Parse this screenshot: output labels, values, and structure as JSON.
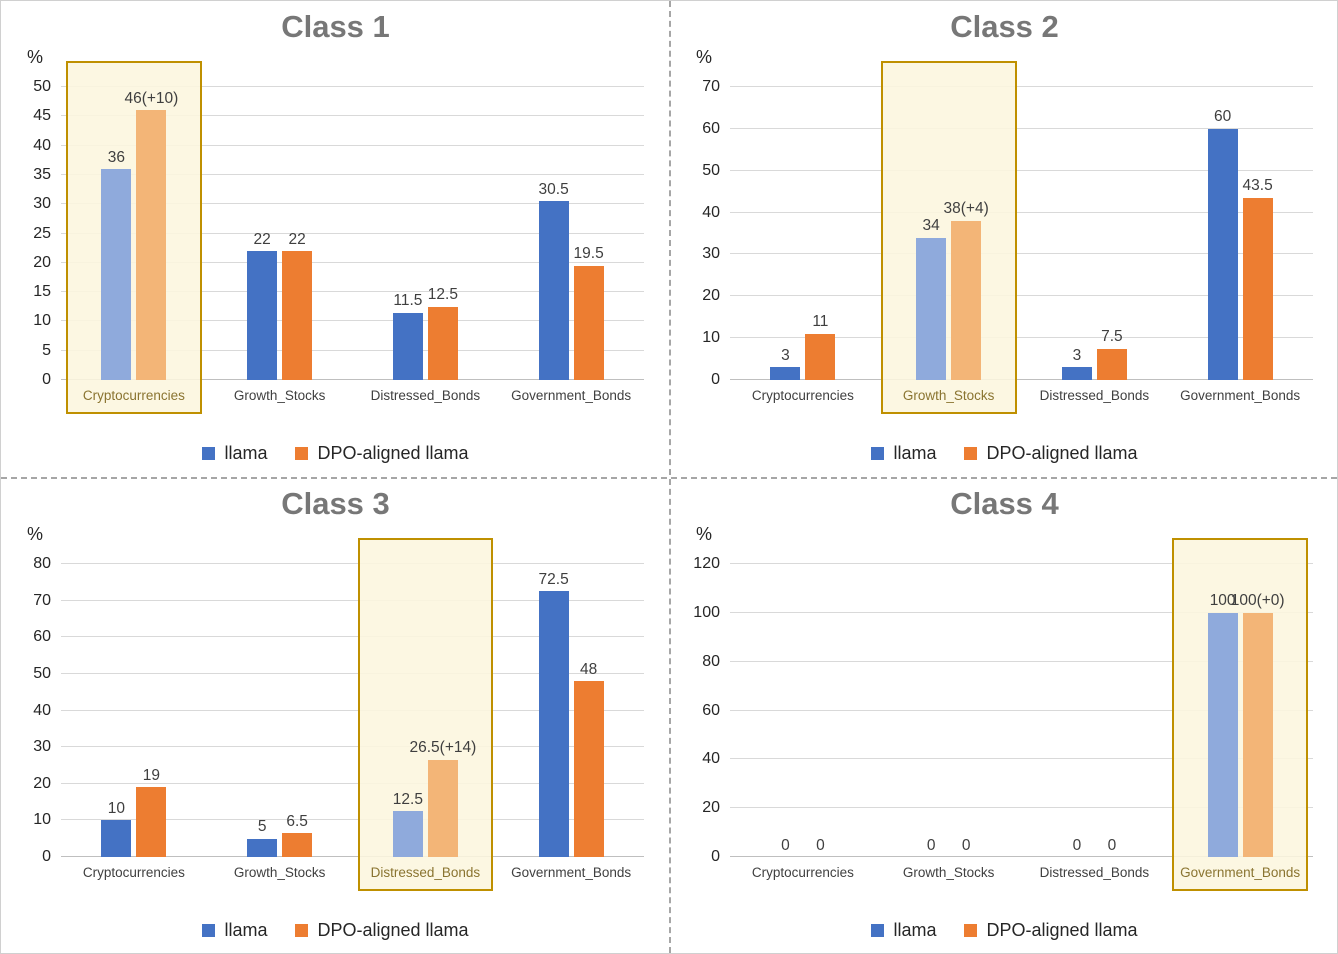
{
  "colors": {
    "blue": "#4472c4",
    "orange": "#ed7d31",
    "blue_light": "#8faadc",
    "orange_light": "#f3b577",
    "highlight_bg": "#fcf6de",
    "highlight_border": "#bf9000",
    "grid": "#d9d9d9",
    "title": "#777777"
  },
  "legend": {
    "series1": "llama",
    "series2": "DPO-aligned llama"
  },
  "chart_data": [
    {
      "type": "bar",
      "title": "Class 1",
      "ylabel": "%",
      "ylim": [
        0,
        50
      ],
      "ytick_step": 5,
      "grid": true,
      "legend_position": "bottom",
      "categories": [
        "Cryptocurrencies",
        "Growth_Stocks",
        "Distressed_Bonds",
        "Government_Bonds"
      ],
      "highlight_index": 0,
      "highlighted_category": "Cryptocurrencies",
      "series": [
        {
          "name": "llama",
          "values": [
            36,
            22,
            11.5,
            30.5
          ]
        },
        {
          "name": "DPO-aligned llama",
          "values": [
            46,
            22,
            12.5,
            19.5
          ]
        }
      ],
      "bar_labels": [
        [
          "36",
          "22",
          "11.5",
          "30.5"
        ],
        [
          "46(+10)",
          "22",
          "12.5",
          "19.5"
        ]
      ]
    },
    {
      "type": "bar",
      "title": "Class 2",
      "ylabel": "%",
      "ylim": [
        0,
        70
      ],
      "ytick_step": 10,
      "grid": true,
      "legend_position": "bottom",
      "categories": [
        "Cryptocurrencies",
        "Growth_Stocks",
        "Distressed_Bonds",
        "Government_Bonds"
      ],
      "highlight_index": 1,
      "highlighted_category": "Growth_Stocks",
      "series": [
        {
          "name": "llama",
          "values": [
            3,
            34,
            3,
            60
          ]
        },
        {
          "name": "DPO-aligned llama",
          "values": [
            11,
            38,
            7.5,
            43.5
          ]
        }
      ],
      "bar_labels": [
        [
          "3",
          "34",
          "3",
          "60"
        ],
        [
          "11",
          "38(+4)",
          "7.5",
          "43.5"
        ]
      ]
    },
    {
      "type": "bar",
      "title": "Class 3",
      "ylabel": "%",
      "ylim": [
        0,
        80
      ],
      "ytick_step": 10,
      "grid": true,
      "legend_position": "bottom",
      "categories": [
        "Cryptocurrencies",
        "Growth_Stocks",
        "Distressed_Bonds",
        "Government_Bonds"
      ],
      "highlight_index": 2,
      "highlighted_category": "Distressed_Bonds",
      "series": [
        {
          "name": "llama",
          "values": [
            10,
            5,
            12.5,
            72.5
          ]
        },
        {
          "name": "DPO-aligned llama",
          "values": [
            19,
            6.5,
            26.5,
            48
          ]
        }
      ],
      "bar_labels": [
        [
          "10",
          "5",
          "12.5",
          "72.5"
        ],
        [
          "19",
          "6.5",
          "26.5(+14)",
          "48"
        ]
      ]
    },
    {
      "type": "bar",
      "title": "Class 4",
      "ylabel": "%",
      "ylim": [
        0,
        120
      ],
      "ytick_step": 20,
      "grid": true,
      "legend_position": "bottom",
      "categories": [
        "Cryptocurrencies",
        "Growth_Stocks",
        "Distressed_Bonds",
        "Government_Bonds"
      ],
      "highlight_index": 3,
      "highlighted_category": "Government_Bonds",
      "series": [
        {
          "name": "llama",
          "values": [
            0,
            0,
            0,
            100
          ]
        },
        {
          "name": "DPO-aligned llama",
          "values": [
            0,
            0,
            0,
            100
          ]
        }
      ],
      "bar_labels": [
        [
          "0",
          "0",
          "0",
          "100"
        ],
        [
          "0",
          "0",
          "0",
          "100(+0)"
        ]
      ]
    }
  ]
}
